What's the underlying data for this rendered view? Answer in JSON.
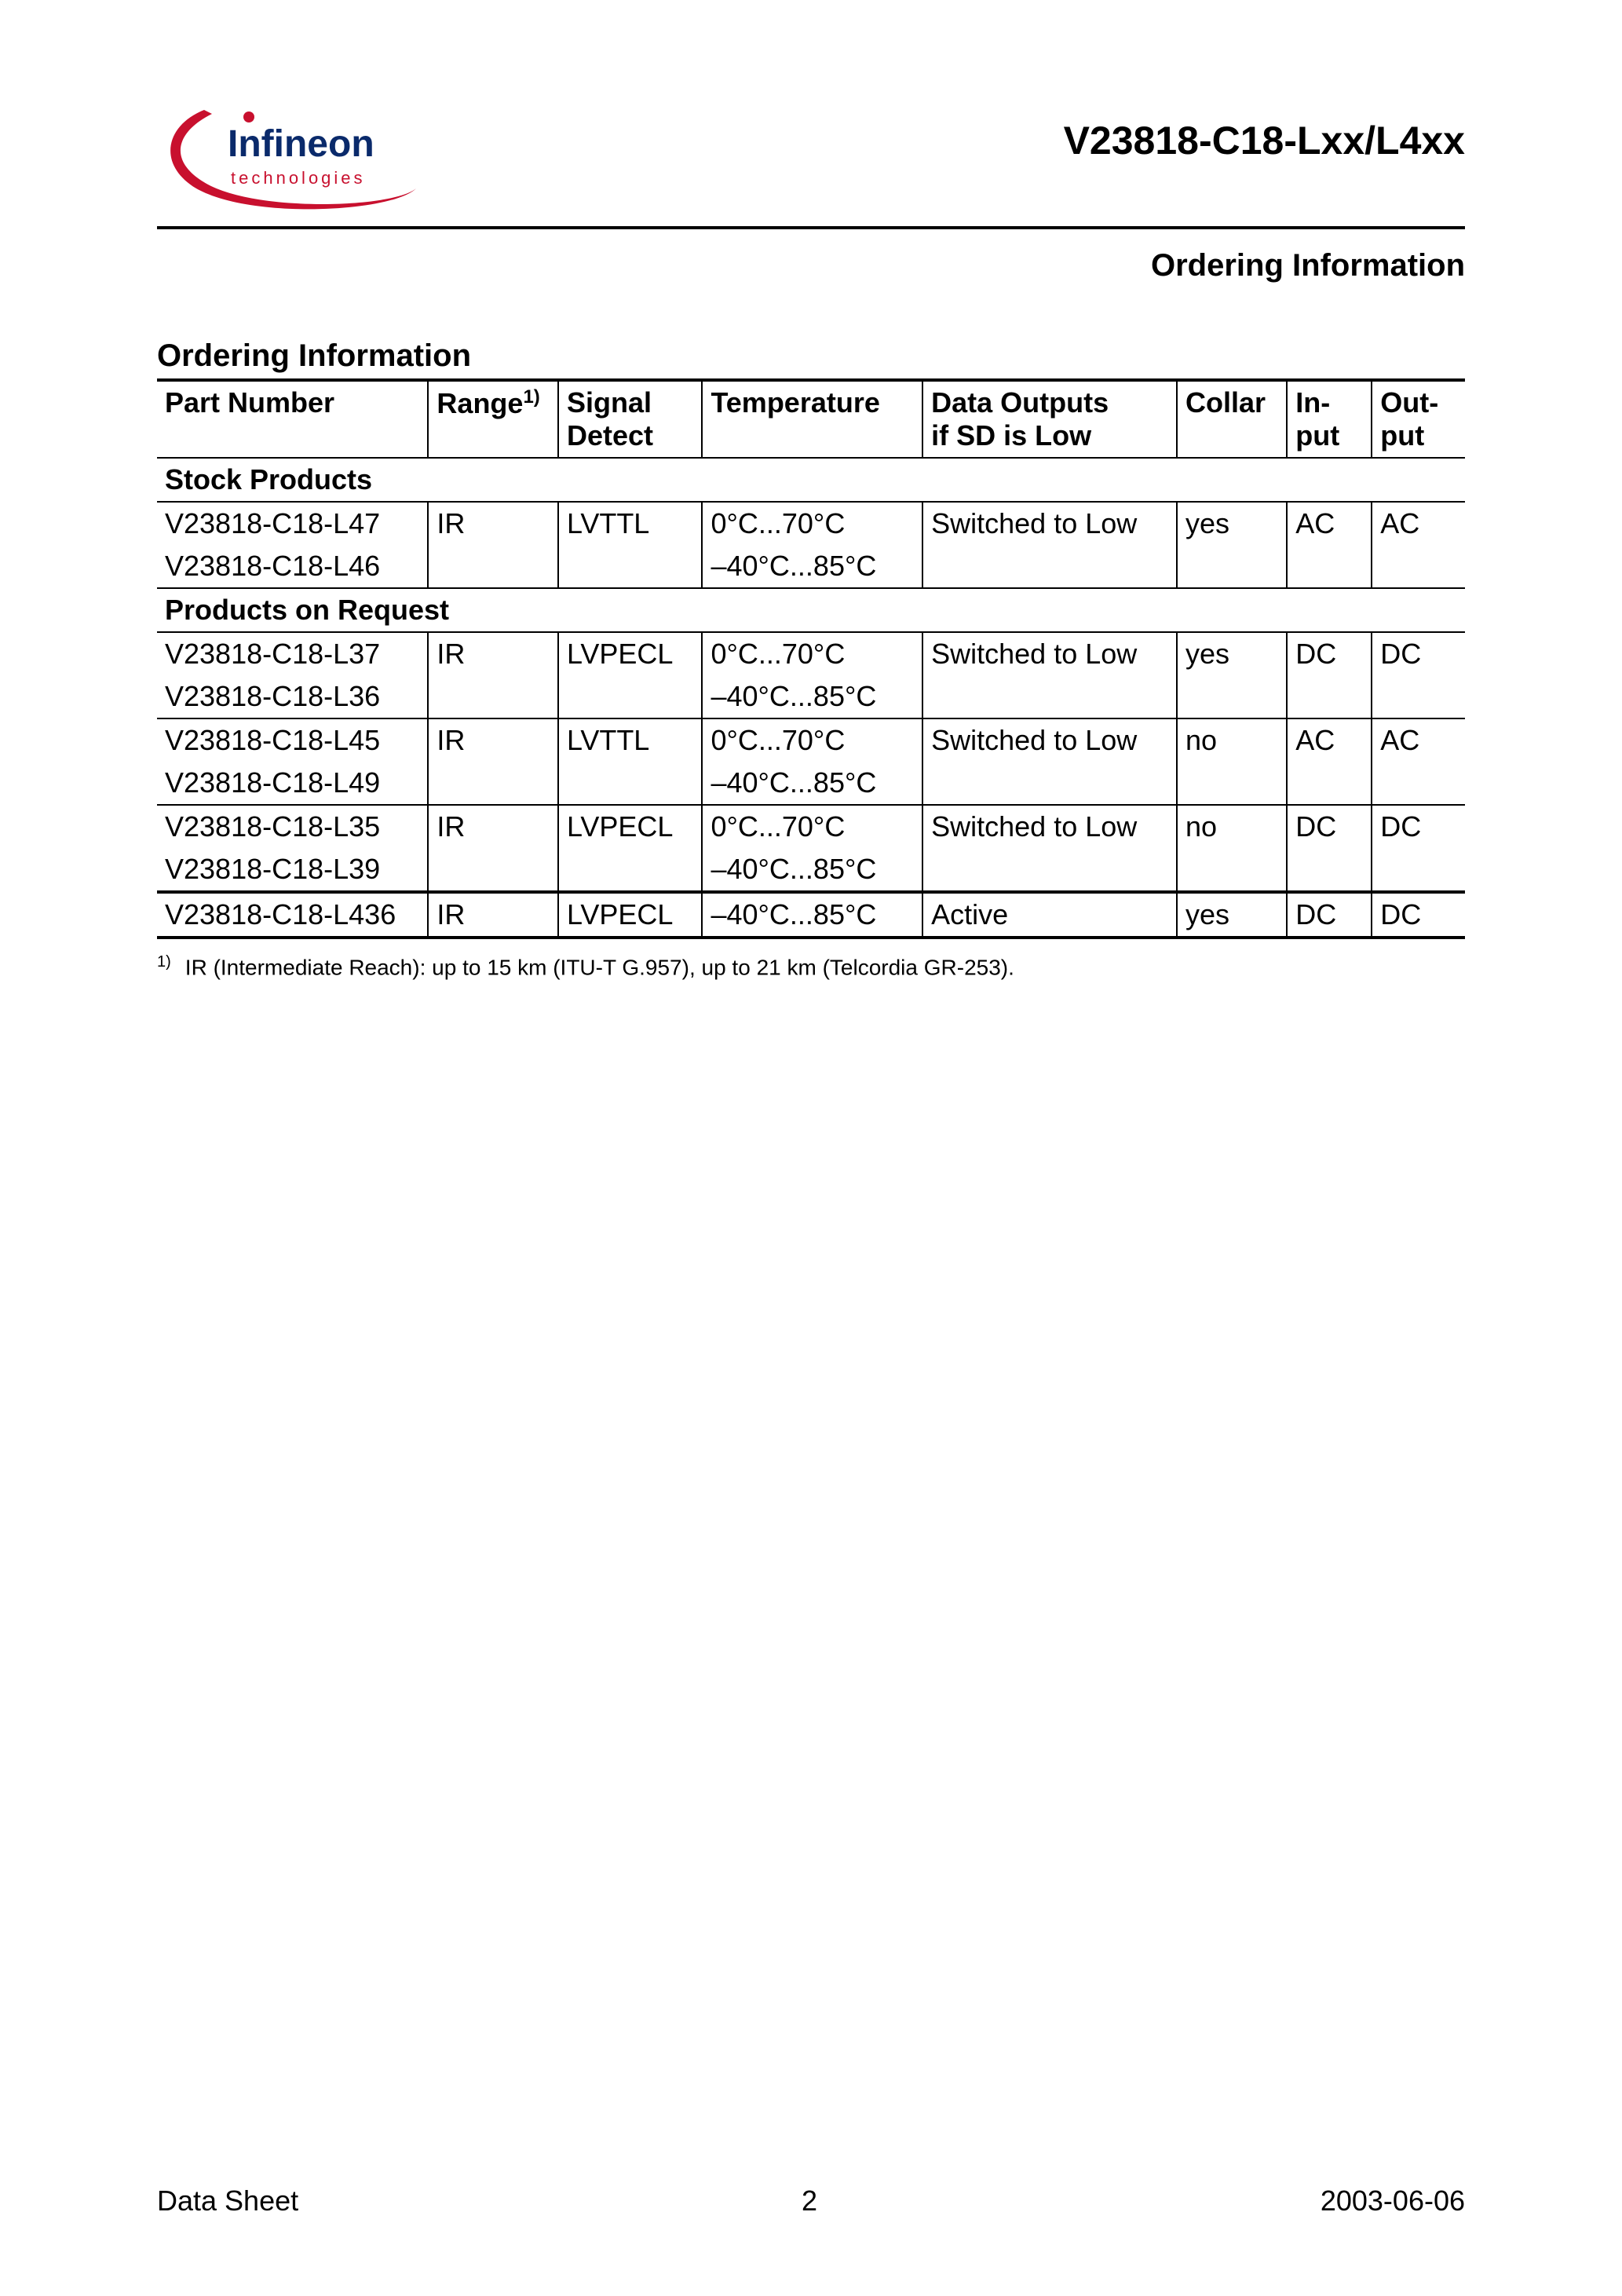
{
  "doc": {
    "code": "V23818-C18-Lxx/L4xx",
    "section_right": "Ordering Information",
    "section_left": "Ordering Information",
    "footer_left": "Data Sheet",
    "footer_center": "2",
    "footer_right": "2003-06-06"
  },
  "logo": {
    "main": "Infineon",
    "sub": "technologies",
    "swoosh_color": "#c8102e",
    "text_color": "#0a2a6b"
  },
  "table": {
    "columns": [
      "Part Number",
      "Range",
      "Signal Detect",
      "Temperature",
      "Data Outputs if SD is Low",
      "Collar",
      "In-put",
      "Out-put"
    ],
    "range_sup": "1)",
    "sections": [
      {
        "title": "Stock Products",
        "groups": [
          {
            "rows": [
              {
                "part": "V23818-C18-L47",
                "range": "IR",
                "sig": "LVTTL",
                "temp": "0°C...70°C",
                "data": "Switched to Low",
                "collar": "yes",
                "in": "AC",
                "out": "AC"
              },
              {
                "part": "V23818-C18-L46",
                "range": "",
                "sig": "",
                "temp": "–40°C...85°C",
                "data": "",
                "collar": "",
                "in": "",
                "out": ""
              }
            ]
          }
        ]
      },
      {
        "title": "Products on Request",
        "groups": [
          {
            "rows": [
              {
                "part": "V23818-C18-L37",
                "range": "IR",
                "sig": "LVPECL",
                "temp": "0°C...70°C",
                "data": "Switched to Low",
                "collar": "yes",
                "in": "DC",
                "out": "DC"
              },
              {
                "part": "V23818-C18-L36",
                "range": "",
                "sig": "",
                "temp": "–40°C...85°C",
                "data": "",
                "collar": "",
                "in": "",
                "out": ""
              }
            ]
          },
          {
            "rows": [
              {
                "part": "V23818-C18-L45",
                "range": "IR",
                "sig": "LVTTL",
                "temp": "0°C...70°C",
                "data": "Switched to Low",
                "collar": "no",
                "in": "AC",
                "out": "AC"
              },
              {
                "part": "V23818-C18-L49",
                "range": "",
                "sig": "",
                "temp": "–40°C...85°C",
                "data": "",
                "collar": "",
                "in": "",
                "out": ""
              }
            ]
          },
          {
            "rows": [
              {
                "part": "V23818-C18-L35",
                "range": "IR",
                "sig": "LVPECL",
                "temp": "0°C...70°C",
                "data": "Switched to Low",
                "collar": "no",
                "in": "DC",
                "out": "DC"
              },
              {
                "part": "V23818-C18-L39",
                "range": "",
                "sig": "",
                "temp": "–40°C...85°C",
                "data": "",
                "collar": "",
                "in": "",
                "out": ""
              }
            ]
          },
          {
            "rows": [
              {
                "part": "V23818-C18-L436",
                "range": "IR",
                "sig": "LVPECL",
                "temp": "–40°C...85°C",
                "data": "Active",
                "collar": "yes",
                "in": "DC",
                "out": "DC"
              }
            ],
            "table_end": true,
            "top_double": true
          }
        ]
      }
    ]
  },
  "footnote": {
    "marker": "1)",
    "text": "IR (Intermediate Reach): up to 15 km (ITU-T G.957), up to 21 km (Telcordia GR-253)."
  },
  "style": {
    "page_bg": "#ffffff",
    "text_color": "#000000",
    "rule_color": "#000000",
    "body_fontsize": 36,
    "header_fontsize": 50,
    "section_fontsize": 40,
    "footnote_fontsize": 28
  }
}
